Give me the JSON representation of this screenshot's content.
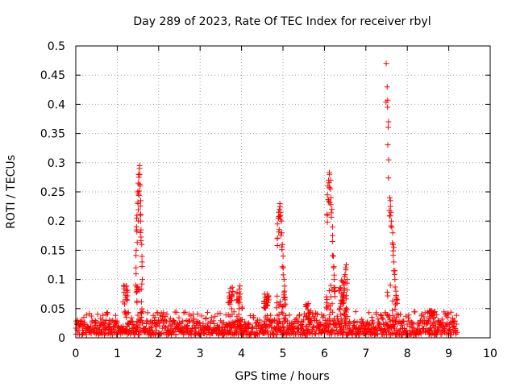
{
  "chart_data": {
    "type": "scatter",
    "title": "Day 289 of 2023, Rate Of TEC Index for receiver rbyl",
    "xlabel": "GPS time / hours",
    "ylabel": "ROTI / TECUs",
    "xlim": [
      0,
      10
    ],
    "ylim": [
      0,
      0.5
    ],
    "grid": true,
    "marker": "+",
    "color": "#ff0000",
    "x_ticks": [
      "0",
      "1",
      "2",
      "3",
      "4",
      "5",
      "6",
      "7",
      "8",
      "9",
      "10"
    ],
    "y_ticks": [
      "0",
      "0.05",
      "0.1",
      "0.15",
      "0.2",
      "0.25",
      "0.3",
      "0.35",
      "0.4",
      "0.45",
      "0.5"
    ],
    "series": [
      {
        "name": "roti",
        "background": {
          "x_range": [
            0.0,
            9.2
          ],
          "baseline_range": [
            0.005,
            0.03
          ],
          "typical_max": 0.045,
          "clusters": [
            {
              "x": 1.2,
              "max": 0.09
            },
            {
              "x": 3.75,
              "max": 0.09
            },
            {
              "x": 3.95,
              "max": 0.09
            },
            {
              "x": 4.6,
              "max": 0.075
            },
            {
              "x": 5.6,
              "max": 0.06
            },
            {
              "x": 6.4,
              "max": 0.1
            },
            {
              "x": 8.6,
              "max": 0.047
            }
          ]
        },
        "spikes": [
          {
            "x_start": 1.45,
            "x_end": 1.6,
            "values": [
              0.09,
              0.12,
              0.15,
              0.185,
              0.205,
              0.21,
              0.23,
              0.25,
              0.265,
              0.275,
              0.28,
              0.29,
              0.295,
              0.28,
              0.26,
              0.235,
              0.21,
              0.2,
              0.185,
              0.16,
              0.13,
              0.1
            ]
          },
          {
            "x_start": 4.85,
            "x_end": 5.05,
            "values": [
              0.06,
              0.17,
              0.195,
              0.205,
              0.215,
              0.22,
              0.23,
              0.225,
              0.215,
              0.2,
              0.18,
              0.16,
              0.14,
              0.12,
              0.1,
              0.08,
              0.065
            ]
          },
          {
            "x_start": 6.05,
            "x_end": 6.25,
            "values": [
              0.06,
              0.21,
              0.245,
              0.26,
              0.27,
              0.28,
              0.283,
              0.27,
              0.255,
              0.24,
              0.22,
              0.19,
              0.165,
              0.14,
              0.12,
              0.1,
              0.08
            ]
          },
          {
            "x_start": 6.45,
            "x_end": 6.55,
            "values": [
              0.07,
              0.09,
              0.105,
              0.12,
              0.125,
              0.1
            ]
          },
          {
            "x_start": 7.5,
            "x_end": 7.75,
            "values": [
              0.47,
              0.43,
              0.395,
              0.37,
              0.305,
              0.24,
              0.235,
              0.225,
              0.215,
              0.2,
              0.18,
              0.16,
              0.155,
              0.13,
              0.115,
              0.1,
              0.08,
              0.07,
              0.065
            ]
          }
        ]
      }
    ]
  }
}
